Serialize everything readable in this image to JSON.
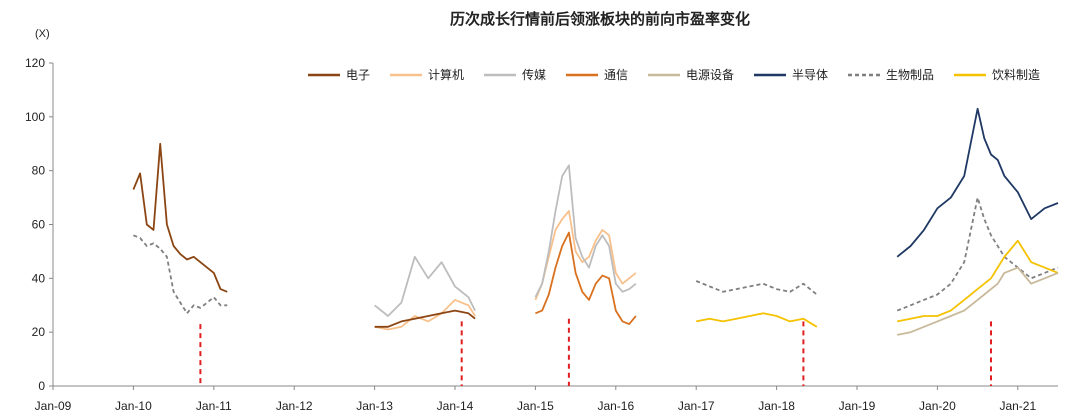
{
  "chart_data": {
    "type": "line",
    "title": "历次成长行情前后领涨板块的前向市盈率变化",
    "unit_label": "(X)",
    "ylim": [
      0,
      120
    ],
    "y_ticks": [
      0,
      20,
      40,
      60,
      80,
      100,
      120
    ],
    "x_ticks": [
      "Jan-09",
      "Jan-10",
      "Jan-11",
      "Jan-12",
      "Jan-13",
      "Jan-14",
      "Jan-15",
      "Jan-16",
      "Jan-17",
      "Jan-18",
      "Jan-19",
      "Jan-20",
      "Jan-21"
    ],
    "xlim": [
      "2009-01",
      "2021-07"
    ],
    "legend_position": "top",
    "grid": false,
    "series": [
      {
        "name": "电子",
        "color": "#8B4513",
        "dash": false,
        "x": [
          "2010-01",
          "2010-02",
          "2010-03",
          "2010-04",
          "2010-05",
          "2010-06",
          "2010-07",
          "2010-08",
          "2010-09",
          "2010-10",
          "2010-11",
          "2010-12",
          "2011-01",
          "2011-02",
          "2011-03"
        ],
        "values": [
          73,
          79,
          60,
          58,
          90,
          60,
          52,
          49,
          47,
          48,
          46,
          44,
          42,
          36,
          35
        ]
      },
      {
        "name": "生物制品",
        "color": "#7f7f7f",
        "dash": true,
        "x": [
          "2010-01",
          "2010-02",
          "2010-03",
          "2010-04",
          "2010-05",
          "2010-06",
          "2010-07",
          "2010-08",
          "2010-09",
          "2010-10",
          "2010-11",
          "2010-12",
          "2011-01",
          "2011-02",
          "2011-03"
        ],
        "values": [
          56,
          55,
          52,
          53,
          51,
          48,
          35,
          31,
          27,
          30,
          29,
          31,
          33,
          30,
          30
        ]
      },
      {
        "name": "计算机",
        "color": "#F8C08B",
        "dash": false,
        "x": [
          "2013-01",
          "2013-03",
          "2013-05",
          "2013-07",
          "2013-09",
          "2013-11",
          "2014-01",
          "2014-03",
          "2014-04"
        ],
        "values": [
          22,
          21,
          22,
          26,
          24,
          27,
          32,
          30,
          26
        ]
      },
      {
        "name": "传媒",
        "color": "#BDBDBD",
        "dash": false,
        "x": [
          "2013-01",
          "2013-03",
          "2013-05",
          "2013-07",
          "2013-09",
          "2013-11",
          "2014-01",
          "2014-03",
          "2014-04"
        ],
        "values": [
          30,
          26,
          31,
          48,
          40,
          46,
          37,
          33,
          28
        ]
      },
      {
        "name": "电子",
        "color": "#8B4513",
        "dash": false,
        "x": [
          "2013-01",
          "2013-03",
          "2013-05",
          "2013-07",
          "2013-09",
          "2013-11",
          "2014-01",
          "2014-03",
          "2014-04"
        ],
        "values": [
          22,
          22,
          24,
          25,
          26,
          27,
          28,
          27,
          25
        ]
      },
      {
        "name": "计算机",
        "color": "#F8C08B",
        "dash": false,
        "x": [
          "2015-01",
          "2015-02",
          "2015-03",
          "2015-04",
          "2015-05",
          "2015-06",
          "2015-07",
          "2015-08",
          "2015-09",
          "2015-10",
          "2015-11",
          "2015-12",
          "2016-01",
          "2016-02",
          "2016-03",
          "2016-04"
        ],
        "values": [
          32,
          38,
          48,
          58,
          62,
          65,
          50,
          46,
          48,
          54,
          58,
          56,
          42,
          38,
          40,
          42
        ]
      },
      {
        "name": "传媒",
        "color": "#BDBDBD",
        "dash": false,
        "x": [
          "2015-01",
          "2015-02",
          "2015-03",
          "2015-04",
          "2015-05",
          "2015-06",
          "2015-07",
          "2015-08",
          "2015-09",
          "2015-10",
          "2015-11",
          "2015-12",
          "2016-01",
          "2016-02",
          "2016-03",
          "2016-04"
        ],
        "values": [
          33,
          38,
          50,
          65,
          78,
          82,
          55,
          48,
          44,
          52,
          56,
          52,
          38,
          35,
          36,
          38
        ]
      },
      {
        "name": "通信",
        "color": "#D9711F",
        "dash": false,
        "x": [
          "2015-01",
          "2015-02",
          "2015-03",
          "2015-04",
          "2015-05",
          "2015-06",
          "2015-07",
          "2015-08",
          "2015-09",
          "2015-10",
          "2015-11",
          "2015-12",
          "2016-01",
          "2016-02",
          "2016-03",
          "2016-04"
        ],
        "values": [
          27,
          28,
          34,
          44,
          52,
          57,
          42,
          35,
          32,
          38,
          41,
          40,
          28,
          24,
          23,
          26
        ]
      },
      {
        "name": "生物制品",
        "color": "#7f7f7f",
        "dash": true,
        "x": [
          "2017-01",
          "2017-03",
          "2017-05",
          "2017-07",
          "2017-09",
          "2017-11",
          "2018-01",
          "2018-03",
          "2018-05",
          "2018-07"
        ],
        "values": [
          39,
          37,
          35,
          36,
          37,
          38,
          36,
          35,
          38,
          34
        ]
      },
      {
        "name": "饮料制造",
        "color": "#F5C200",
        "dash": false,
        "x": [
          "2017-01",
          "2017-03",
          "2017-05",
          "2017-07",
          "2017-09",
          "2017-11",
          "2018-01",
          "2018-03",
          "2018-05",
          "2018-07"
        ],
        "values": [
          24,
          25,
          24,
          25,
          26,
          27,
          26,
          24,
          25,
          22
        ]
      },
      {
        "name": "半导体",
        "color": "#1F3864",
        "dash": false,
        "x": [
          "2019-07",
          "2019-09",
          "2019-11",
          "2020-01",
          "2020-03",
          "2020-05",
          "2020-07",
          "2020-08",
          "2020-09",
          "2020-10",
          "2020-11",
          "2021-01",
          "2021-03",
          "2021-05",
          "2021-07"
        ],
        "values": [
          48,
          52,
          58,
          66,
          70,
          78,
          103,
          92,
          86,
          84,
          78,
          72,
          62,
          66,
          68
        ]
      },
      {
        "name": "生物制品",
        "color": "#7f7f7f",
        "dash": true,
        "x": [
          "2019-07",
          "2019-09",
          "2019-11",
          "2020-01",
          "2020-03",
          "2020-05",
          "2020-07",
          "2020-08",
          "2020-09",
          "2020-10",
          "2020-11",
          "2021-01",
          "2021-03",
          "2021-05",
          "2021-07"
        ],
        "values": [
          28,
          30,
          32,
          34,
          38,
          46,
          70,
          62,
          56,
          52,
          48,
          44,
          40,
          42,
          44
        ]
      },
      {
        "name": "饮料制造",
        "color": "#F5C200",
        "dash": false,
        "x": [
          "2019-07",
          "2019-09",
          "2019-11",
          "2020-01",
          "2020-03",
          "2020-05",
          "2020-07",
          "2020-08",
          "2020-09",
          "2020-10",
          "2020-11",
          "2021-01",
          "2021-03",
          "2021-05",
          "2021-07"
        ],
        "values": [
          24,
          25,
          26,
          26,
          28,
          32,
          36,
          38,
          40,
          44,
          48,
          54,
          46,
          44,
          42
        ]
      },
      {
        "name": "电源设备",
        "color": "#C8B99A",
        "dash": false,
        "x": [
          "2019-07",
          "2019-09",
          "2019-11",
          "2020-01",
          "2020-03",
          "2020-05",
          "2020-07",
          "2020-08",
          "2020-09",
          "2020-10",
          "2020-11",
          "2021-01",
          "2021-03",
          "2021-05",
          "2021-07"
        ],
        "values": [
          19,
          20,
          22,
          24,
          26,
          28,
          32,
          34,
          36,
          38,
          42,
          44,
          38,
          40,
          42
        ]
      }
    ],
    "legend": [
      {
        "name": "电子",
        "color": "#8B4513",
        "dash": false
      },
      {
        "name": "计算机",
        "color": "#F8C08B",
        "dash": false
      },
      {
        "name": "传媒",
        "color": "#BDBDBD",
        "dash": false
      },
      {
        "name": "通信",
        "color": "#D9711F",
        "dash": false
      },
      {
        "name": "电源设备",
        "color": "#C8B99A",
        "dash": false
      },
      {
        "name": "半导体",
        "color": "#1F3864",
        "dash": false
      },
      {
        "name": "生物制品",
        "color": "#7f7f7f",
        "dash": true
      },
      {
        "name": "饮料制造",
        "color": "#F5C200",
        "dash": false
      }
    ],
    "markers": {
      "color": "#E02020",
      "dash": true,
      "lines": [
        {
          "x": "2010-11",
          "y_top": 23
        },
        {
          "x": "2014-02",
          "y_top": 24
        },
        {
          "x": "2015-06",
          "y_top": 25
        },
        {
          "x": "2018-05",
          "y_top": 24
        },
        {
          "x": "2020-09",
          "y_top": 24
        }
      ]
    }
  }
}
